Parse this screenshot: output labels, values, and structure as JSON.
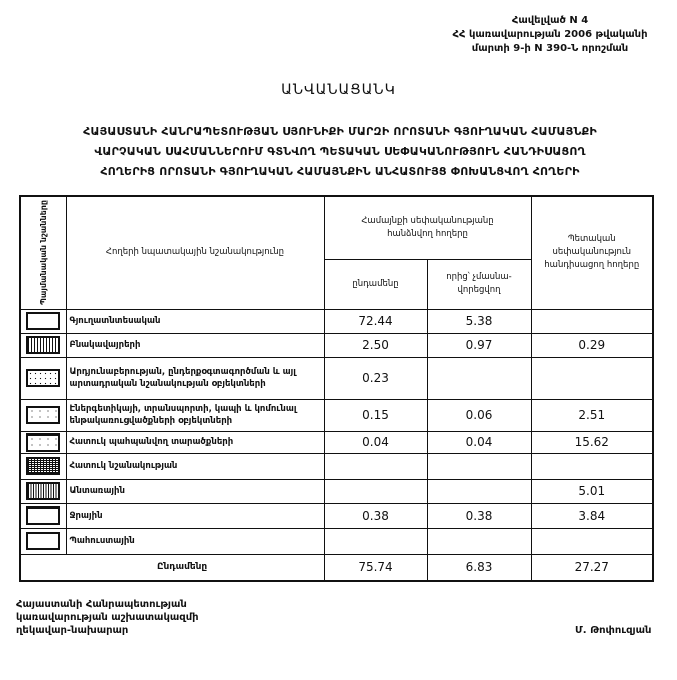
{
  "appendix": {
    "line1": "Հավելված N 4",
    "line2": "ՀՀ կառավարության 2006 թվականի",
    "line3": "մարտի 9-ի N 390-Ն որոշման"
  },
  "title": "ԱՆՎԱՆԱՑԱՆԿ",
  "subtitle": {
    "line1": "ՀԱՅԱՍՏԱՆԻ ՀԱՆՐԱՊԵՏՈՒԹՅԱՆ ՍՅՈՒՆԻՔԻ ՄԱՐԶԻ ՈՐՈՏԱՆԻ ԳՅՈՒՂԱԿԱՆ ՀԱՄԱՅՆՔԻ",
    "line2": "ՎԱՐՉԱԿԱՆ ՍԱՀՄԱՆՆԵՐՈՒՄ ԳՏՆՎՈՂ ՊԵՏԱԿԱՆ ՍԵՓԱԿԱՆՈՒԹՅՈՒՆ ՀԱՆԴԻՍԱՑՈՂ",
    "line3": "ՀՈՂԵՐԻՑ ՈՐՈՏԱՆԻ ԳՅՈՒՂԱԿԱՆ ՀԱՄԱՅՆՔԻՆ ԱՆՀԱՏՈՒՅՑ ՓՈԽԱՆՑՎՈՂ ՀՈՂԵՐԻ"
  },
  "table": {
    "headers": {
      "symbols": "Պայմանական նշանները",
      "purpose": "Հողերի նպատակային նշանակությունը",
      "community_group": "Համայնքի սեփականությանը հանձնվող հողերը",
      "total": "ընդամենը",
      "of_which": "որից՝ չմասնա-վորեցվող",
      "state": "Պետական սեփականություն հանդիսացող հողերը"
    },
    "rows": [
      {
        "symbol": "empty-box-icon",
        "label": "Գյուղատնտեսական",
        "total": "72.44",
        "of_which": "5.38",
        "state": ""
      },
      {
        "symbol": "grid-hatch-icon",
        "label": "Բնակավայրերի",
        "total": "2.50",
        "of_which": "0.97",
        "state": "0.29"
      },
      {
        "symbol": "dotted-hatch-icon",
        "label": "Արդյունաբերության, ընդերքօգտագործման և այլ արտադրական նշանակության օբյեկտների",
        "total": "0.23",
        "of_which": "",
        "state": ""
      },
      {
        "symbol": "sparse-dot-icon",
        "label": "Էներգետիկայի, տրանսպորտի, կապի և կոմունալ ենթակառուցվածքների օբյեկտների",
        "total": "0.15",
        "of_which": "0.06",
        "state": "2.51"
      },
      {
        "symbol": "protected-area-icon",
        "label": "Հատուկ պահպանվող տարածքների",
        "total": "0.04",
        "of_which": "0.04",
        "state": "15.62"
      },
      {
        "symbol": "dense-hatch-icon",
        "label": "Հատուկ նշանակության",
        "total": "",
        "of_which": "",
        "state": ""
      },
      {
        "symbol": "forest-hatch-icon",
        "label": "Անտառային",
        "total": "",
        "of_which": "",
        "state": "5.01"
      },
      {
        "symbol": "water-box-icon",
        "label": "Ջրային",
        "total": "0.38",
        "of_which": "0.38",
        "state": "3.84"
      },
      {
        "symbol": "reserve-box-icon",
        "label": "Պահուստային",
        "total": "",
        "of_which": "",
        "state": ""
      }
    ],
    "totals": {
      "label": "Ընդամենը",
      "total": "75.74",
      "of_which": "6.83",
      "state": "27.27"
    }
  },
  "footer": {
    "position_line1": "Հայաստանի Հանրապետության",
    "position_line2": "կառավարության աշխատակազմի",
    "position_line3": "ղեկավար-նախարար",
    "signatory": "Մ. Թոփուզյան"
  }
}
